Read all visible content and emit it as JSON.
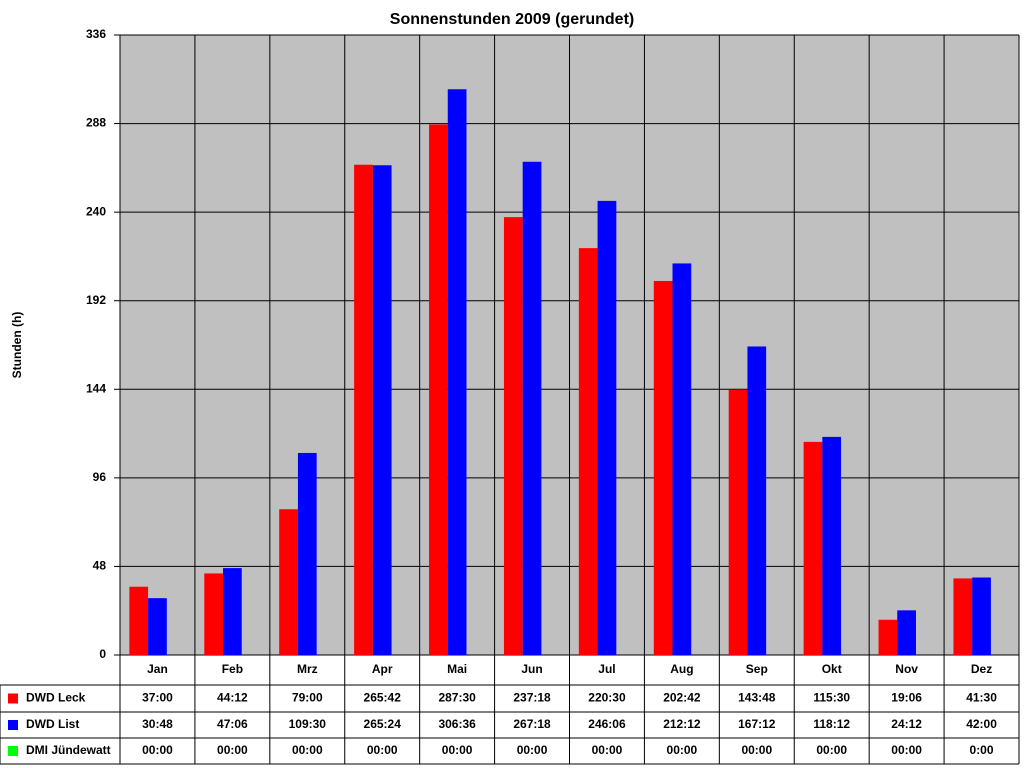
{
  "chart_data": {
    "type": "bar",
    "title": "Sonnenstunden 2009 (gerundet)",
    "y_label": "Stunden (h)",
    "categories": [
      "Jan",
      "Feb",
      "Mrz",
      "Apr",
      "Mai",
      "Jun",
      "Jul",
      "Aug",
      "Sep",
      "Okt",
      "Nov",
      "Dez"
    ],
    "series": [
      {
        "name": "DWD Leck",
        "color": "#ff0000",
        "values": [
          37,
          44.2,
          79,
          265.7,
          287.5,
          237.3,
          220.5,
          202.7,
          143.8,
          115.5,
          19.1,
          41.5
        ],
        "value_labels": [
          "37:00",
          "44:12",
          "79:00",
          "265:42",
          "287:30",
          "237:18",
          "220:30",
          "202:42",
          "143:48",
          "115:30",
          "19:06",
          "41:30"
        ]
      },
      {
        "name": "DWD List",
        "color": "#0000ff",
        "values": [
          30.8,
          47.1,
          109.5,
          265.4,
          306.6,
          267.3,
          246.1,
          212.2,
          167.2,
          118.2,
          24.2,
          42
        ],
        "value_labels": [
          "30:48",
          "47:06",
          "109:30",
          "265:24",
          "306:36",
          "267:18",
          "246:06",
          "212:12",
          "167:12",
          "118:12",
          "24:12",
          "42:00"
        ]
      },
      {
        "name": "DMI Jündewatt",
        "color": "#00ff00",
        "values": [
          0,
          0,
          0,
          0,
          0,
          0,
          0,
          0,
          0,
          0,
          0,
          0
        ],
        "value_labels": [
          "00:00",
          "00:00",
          "00:00",
          "00:00",
          "00:00",
          "00:00",
          "00:00",
          "00:00",
          "00:00",
          "00:00",
          "00:00",
          "0:00"
        ]
      }
    ],
    "ylim": [
      0,
      336
    ],
    "yticks": [
      0,
      48,
      96,
      144,
      192,
      240,
      288,
      336
    ],
    "grid": true,
    "plot_background": "#c0c0c0"
  }
}
